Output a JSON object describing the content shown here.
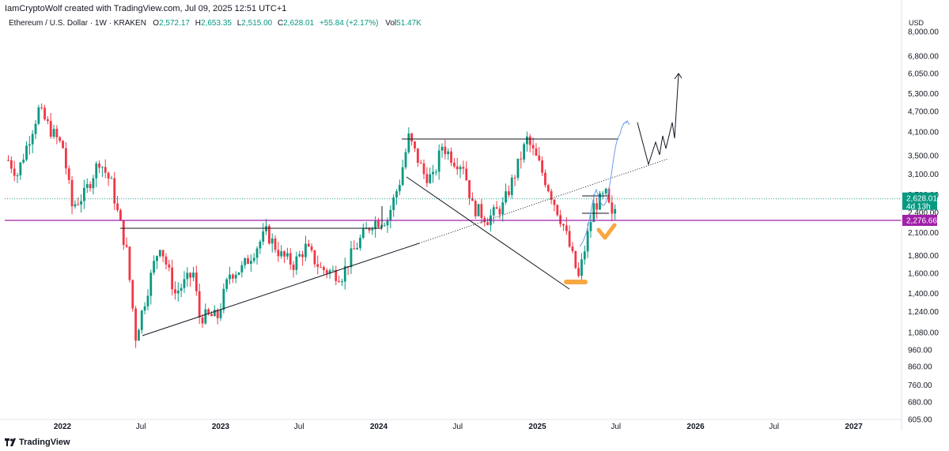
{
  "header": {
    "attribution": "IamCryptoWolf created with TradingView.com, Jul 09, 2025 12:51 UTC+1"
  },
  "legend": {
    "symbol": "Ethereum / U.S. Dollar · 1W · KRAKEN",
    "open_label": "O",
    "open": "2,572.17",
    "high_label": "H",
    "high": "2,653.35",
    "low_label": "L",
    "low": "2,515.00",
    "close_label": "C",
    "close": "2,628.01",
    "change": "+55.84 (+2.17%)",
    "vol_label": "Vol",
    "vol": "51.47K"
  },
  "currency": "USD",
  "footer": {
    "brand": "TradingView"
  },
  "colors": {
    "up": "#089981",
    "down": "#f23645",
    "hline": "#a020a8",
    "projection": "#6f9ae8",
    "highlight": "#f7a842",
    "drawing": "#131722"
  },
  "price_tags": {
    "last": "2,628.01",
    "countdown": "4d 13h",
    "hline": "2,276.66"
  },
  "chart_data": {
    "type": "candlestick",
    "scale": "log",
    "yticks": [
      605,
      680,
      760,
      860,
      960,
      1080,
      1240,
      1400,
      1600,
      1800,
      2100,
      2400,
      2700,
      3100,
      3500,
      4100,
      4700,
      5300,
      6050,
      6800,
      8000
    ],
    "ytick_labels": [
      "605.00",
      "680.00",
      "760.00",
      "860.00",
      "960.00",
      "1,080.00",
      "1,240.00",
      "1,400.00",
      "1,600.00",
      "1,800.00",
      "2,100.00",
      "2,400.00",
      "2,700.00",
      "3,100.00",
      "3,500.00",
      "4,100.00",
      "4,700.00",
      "5,300.00",
      "6,050.00",
      "6,800.00",
      "8,000.00"
    ],
    "xticks": [
      {
        "label": "2022",
        "date": "2022-01-01"
      },
      {
        "label": "Jul",
        "date": "2022-07-01"
      },
      {
        "label": "2023",
        "date": "2023-01-01"
      },
      {
        "label": "Jul",
        "date": "2023-07-01"
      },
      {
        "label": "2024",
        "date": "2024-01-01"
      },
      {
        "label": "Jul",
        "date": "2024-07-01"
      },
      {
        "label": "2025",
        "date": "2025-01-01"
      },
      {
        "label": "Jul",
        "date": "2025-07-01"
      },
      {
        "label": "2026",
        "date": "2026-01-01"
      },
      {
        "label": "Jul",
        "date": "2026-07-01"
      },
      {
        "label": "2027",
        "date": "2027-01-01"
      }
    ],
    "path_points": [
      [
        "2021-08-29",
        3400
      ],
      [
        "2021-09-19",
        3100
      ],
      [
        "2021-11-07",
        4750
      ],
      [
        "2021-12-05",
        4150
      ],
      [
        "2022-01-02",
        3700
      ],
      [
        "2022-01-23",
        2500
      ],
      [
        "2022-02-20",
        2700
      ],
      [
        "2022-03-27",
        3400
      ],
      [
        "2022-04-24",
        2900
      ],
      [
        "2022-05-08",
        2400
      ],
      [
        "2022-05-29",
        1850
      ],
      [
        "2022-06-19",
        1050
      ],
      [
        "2022-07-31",
        1700
      ],
      [
        "2022-08-14",
        1950
      ],
      [
        "2022-09-18",
        1400
      ],
      [
        "2022-10-30",
        1600
      ],
      [
        "2022-11-13",
        1200
      ],
      [
        "2022-12-25",
        1200
      ],
      [
        "2023-01-22",
        1600
      ],
      [
        "2023-02-19",
        1650
      ],
      [
        "2023-04-16",
        2100
      ],
      [
        "2023-05-21",
        1800
      ],
      [
        "2023-06-18",
        1700
      ],
      [
        "2023-07-16",
        1900
      ],
      [
        "2023-08-20",
        1650
      ],
      [
        "2023-10-08",
        1580
      ],
      [
        "2023-10-29",
        1800
      ],
      [
        "2023-11-19",
        2000
      ],
      [
        "2023-12-17",
        2250
      ],
      [
        "2024-01-21",
        2300
      ],
      [
        "2024-02-18",
        2950
      ],
      [
        "2024-03-10",
        3950
      ],
      [
        "2024-04-14",
        3100
      ],
      [
        "2024-05-05",
        3000
      ],
      [
        "2024-05-26",
        3750
      ],
      [
        "2024-06-23",
        3400
      ],
      [
        "2024-07-14",
        3300
      ],
      [
        "2024-08-04",
        2500
      ],
      [
        "2024-09-08",
        2300
      ],
      [
        "2024-10-13",
        2500
      ],
      [
        "2024-11-10",
        3100
      ],
      [
        "2024-12-08",
        3900
      ],
      [
        "2025-01-05",
        3300
      ],
      [
        "2025-02-02",
        2700
      ],
      [
        "2025-03-02",
        2200
      ],
      [
        "2025-04-06",
        1550
      ],
      [
        "2025-05-11",
        2500
      ],
      [
        "2025-06-08",
        2700
      ],
      [
        "2025-06-22",
        2300
      ],
      [
        "2025-07-06",
        2628
      ]
    ],
    "horizontal_line": 2276.66,
    "last_price": 2628.01
  }
}
